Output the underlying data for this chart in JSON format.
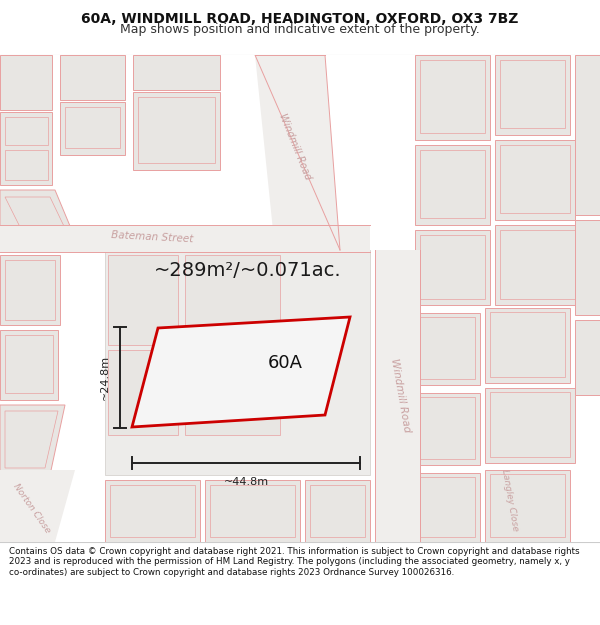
{
  "title_line1": "60A, WINDMILL ROAD, HEADINGTON, OXFORD, OX3 7BZ",
  "title_line2": "Map shows position and indicative extent of the property.",
  "footer": "Contains OS data © Crown copyright and database right 2021. This information is subject to Crown copyright and database rights 2023 and is reproduced with the permission of HM Land Registry. The polygons (including the associated geometry, namely x, y co-ordinates) are subject to Crown copyright and database rights 2023 Ordnance Survey 100026316.",
  "area_label": "~289m²/~0.071ac.",
  "width_label": "~44.8m",
  "height_label": "~24.8m",
  "plot_label": "60A",
  "map_bg": "#f5f4f2",
  "block_fill": "#e8e6e3",
  "block_edge": "#e8a0a0",
  "road_fill": "#f5f4f2",
  "plot_outline": "#cc0000",
  "plot_fill": "#f5f4f2",
  "street_label_color": "#c8a0a0",
  "dim_color": "#222222",
  "title_bg": "#ffffff",
  "footer_bg": "#ffffff",
  "separator_color": "#cccccc"
}
